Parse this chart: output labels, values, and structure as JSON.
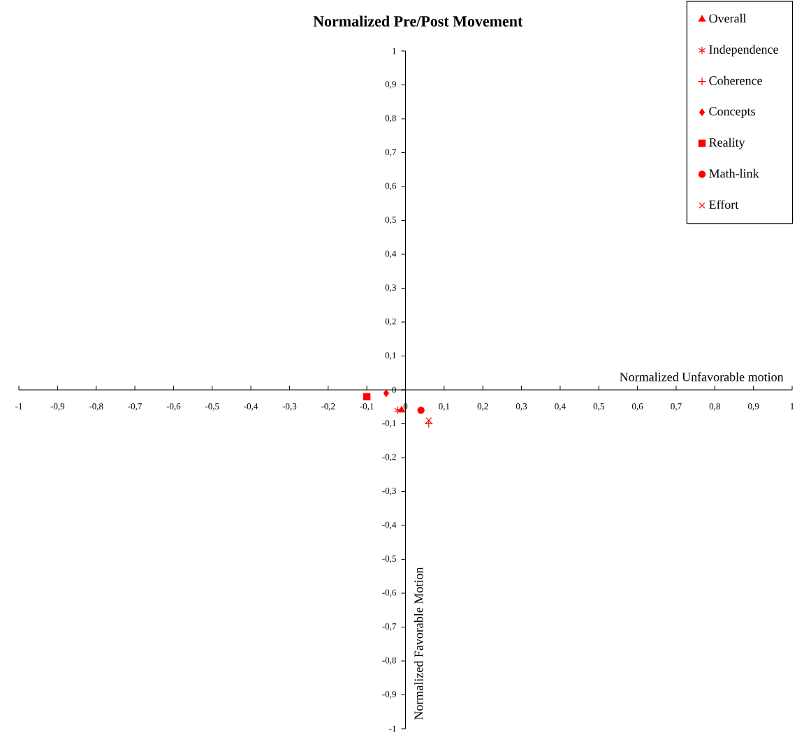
{
  "chart_data": {
    "type": "scatter",
    "title": "Normalized Pre/Post  Movement",
    "xlabel": "Normalized Unfavorable motion",
    "ylabel": "Normalized Favorable Motion",
    "xlim": [
      -1,
      1
    ],
    "ylim": [
      -1,
      1
    ],
    "xticks": [
      {
        "value": -1,
        "label": "-1"
      },
      {
        "value": -0.9,
        "label": "-0,9"
      },
      {
        "value": -0.8,
        "label": "-0,8"
      },
      {
        "value": -0.7,
        "label": "-0,7"
      },
      {
        "value": -0.6,
        "label": "-0,6"
      },
      {
        "value": -0.5,
        "label": "-0,5"
      },
      {
        "value": -0.4,
        "label": "-0,4"
      },
      {
        "value": -0.3,
        "label": "-0,3"
      },
      {
        "value": -0.2,
        "label": "-0,2"
      },
      {
        "value": -0.1,
        "label": "-0,1"
      },
      {
        "value": 0,
        "label": "0"
      },
      {
        "value": 0.1,
        "label": "0,1"
      },
      {
        "value": 0.2,
        "label": "0,2"
      },
      {
        "value": 0.3,
        "label": "0,3"
      },
      {
        "value": 0.4,
        "label": "0,4"
      },
      {
        "value": 0.5,
        "label": "0,5"
      },
      {
        "value": 0.6,
        "label": "0,6"
      },
      {
        "value": 0.7,
        "label": "0,7"
      },
      {
        "value": 0.8,
        "label": "0,8"
      },
      {
        "value": 0.9,
        "label": "0,9"
      },
      {
        "value": 1,
        "label": "1"
      }
    ],
    "yticks": [
      {
        "value": -1,
        "label": "-1"
      },
      {
        "value": -0.9,
        "label": "-0,9"
      },
      {
        "value": -0.8,
        "label": "-0,8"
      },
      {
        "value": -0.7,
        "label": "-0,7"
      },
      {
        "value": -0.6,
        "label": "-0,6"
      },
      {
        "value": -0.5,
        "label": "-0,5"
      },
      {
        "value": -0.4,
        "label": "-0,4"
      },
      {
        "value": -0.3,
        "label": "-0,3"
      },
      {
        "value": -0.2,
        "label": "-0,2"
      },
      {
        "value": -0.1,
        "label": "-0,1"
      },
      {
        "value": 0,
        "label": "0"
      },
      {
        "value": 0.1,
        "label": "0,1"
      },
      {
        "value": 0.2,
        "label": "0,2"
      },
      {
        "value": 0.3,
        "label": "0,3"
      },
      {
        "value": 0.4,
        "label": "0,4"
      },
      {
        "value": 0.5,
        "label": "0,5"
      },
      {
        "value": 0.6,
        "label": "0,6"
      },
      {
        "value": 0.7,
        "label": "0,7"
      },
      {
        "value": 0.8,
        "label": "0,8"
      },
      {
        "value": 0.9,
        "label": "0,9"
      },
      {
        "value": 1,
        "label": "1"
      }
    ],
    "legend": "top right",
    "series": [
      {
        "name": "Overall",
        "color": "#ff0000",
        "marker": "triangle",
        "x": [
          -0.01
        ],
        "values": [
          -0.06
        ]
      },
      {
        "name": "Independence",
        "color": "#ff0000",
        "x": [
          -0.02
        ],
        "values": [
          -0.06
        ]
      },
      {
        "name": "Coherence",
        "color": "#ff0000",
        "marker": "plus",
        "x": [
          0.06
        ],
        "values": [
          -0.1
        ]
      },
      {
        "name": "Concepts",
        "color": "#ff0000",
        "marker": "diamond",
        "x": [
          -0.05
        ],
        "values": [
          -0.01
        ]
      },
      {
        "name": "Reality",
        "color": "#ff0000",
        "marker": "square",
        "x": [
          -0.1
        ],
        "values": [
          -0.02
        ]
      },
      {
        "name": "Math-link",
        "color": "#ff0000",
        "marker": "circle",
        "x": [
          0.04
        ],
        "values": [
          -0.06
        ]
      },
      {
        "name": "Effort",
        "color": "#ff0000",
        "marker": "cross",
        "x": [
          0.06
        ],
        "values": [
          -0.09
        ]
      }
    ]
  }
}
